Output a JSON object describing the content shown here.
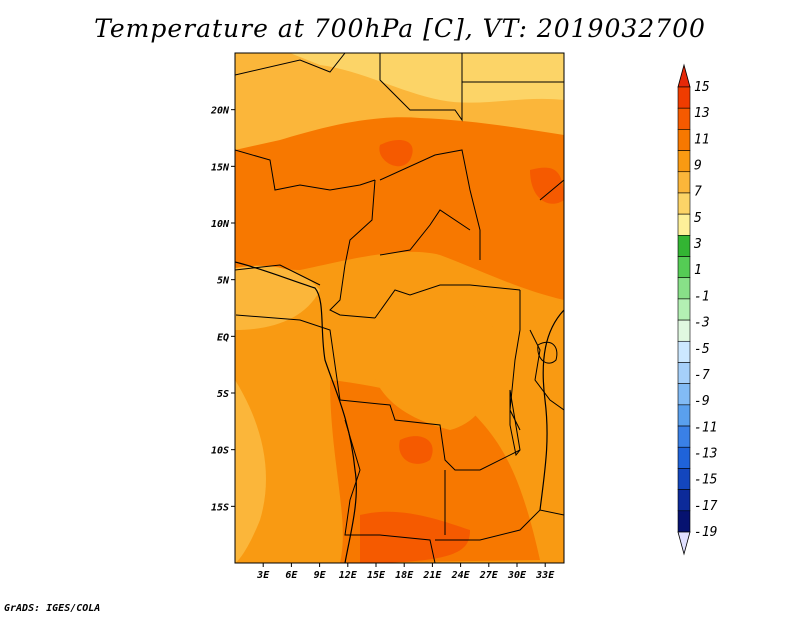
{
  "title": "Temperature at 700hPa [C], VT: 2019032700",
  "credit": "GrADS: IGES/COLA",
  "map": {
    "lon_range": [
      0,
      35
    ],
    "lat_range": [
      -20,
      25
    ],
    "x_ticks": [
      {
        "lon": 3,
        "label": "3E"
      },
      {
        "lon": 6,
        "label": "6E"
      },
      {
        "lon": 9,
        "label": "9E"
      },
      {
        "lon": 12,
        "label": "12E"
      },
      {
        "lon": 15,
        "label": "15E"
      },
      {
        "lon": 18,
        "label": "18E"
      },
      {
        "lon": 21,
        "label": "21E"
      },
      {
        "lon": 24,
        "label": "24E"
      },
      {
        "lon": 27,
        "label": "27E"
      },
      {
        "lon": 30,
        "label": "30E"
      },
      {
        "lon": 33,
        "label": "33E"
      }
    ],
    "y_ticks": [
      {
        "lat": 20,
        "label": "20N"
      },
      {
        "lat": 15,
        "label": "15N"
      },
      {
        "lat": 10,
        "label": "10N"
      },
      {
        "lat": 5,
        "label": "5N"
      },
      {
        "lat": 0,
        "label": "EQ"
      },
      {
        "lat": -5,
        "label": "5S"
      },
      {
        "lat": -10,
        "label": "10S"
      },
      {
        "lat": -15,
        "label": "15S"
      }
    ]
  },
  "colorbar": {
    "labels": [
      "15",
      "13",
      "11",
      "9",
      "7",
      "5",
      "3",
      "1",
      "-1",
      "-3",
      "-5",
      "-7",
      "-9",
      "-11",
      "-13",
      "-15",
      "-17",
      "-19"
    ],
    "colors": [
      "#f03c00",
      "#f55a00",
      "#f77800",
      "#f99a12",
      "#fbb63a",
      "#fcd467",
      "#fdf099",
      "#33b533",
      "#55cc55",
      "#88e088",
      "#b3f0b3",
      "#e0f8e0",
      "#cce8ff",
      "#a6d0fa",
      "#82bbf5",
      "#5aa0ee",
      "#3a80e6",
      "#1f63d9",
      "#1346bd",
      "#0c2a99",
      "#061270",
      "#e0e0ff"
    ],
    "top_arrow_color": "#e52808",
    "bottom_arrow_color": "#e0e0ff"
  },
  "fill_levels": {
    "background": "#f99a12",
    "regions": [
      {
        "name": "sahara-north",
        "color": "#fcd467"
      },
      {
        "name": "sahara-band",
        "color": "#fbb63a"
      },
      {
        "name": "sahel-belt",
        "color": "#f77800"
      },
      {
        "name": "hot-spot-east",
        "color": "#f55a00"
      },
      {
        "name": "gulf-guinea",
        "color": "#fbb63a"
      },
      {
        "name": "congo-basin",
        "color": "#f99a12"
      },
      {
        "name": "angola-zambia",
        "color": "#f77800"
      },
      {
        "name": "south-hot",
        "color": "#f55a00"
      },
      {
        "name": "atlantic-sw",
        "color": "#fbb63a"
      },
      {
        "name": "east-africa",
        "color": "#f99a12"
      }
    ]
  }
}
